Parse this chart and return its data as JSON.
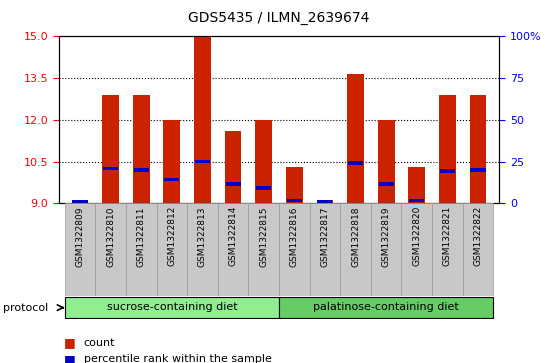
{
  "title": "GDS5435 / ILMN_2639674",
  "samples": [
    "GSM1322809",
    "GSM1322810",
    "GSM1322811",
    "GSM1322812",
    "GSM1322813",
    "GSM1322814",
    "GSM1322815",
    "GSM1322816",
    "GSM1322817",
    "GSM1322818",
    "GSM1322819",
    "GSM1322820",
    "GSM1322821",
    "GSM1322822"
  ],
  "count_values": [
    9.1,
    12.9,
    12.9,
    12.0,
    15.0,
    11.6,
    12.0,
    10.3,
    9.1,
    13.65,
    12.0,
    10.3,
    12.9,
    12.9
  ],
  "percentile_values": [
    9.05,
    10.25,
    10.2,
    9.85,
    10.5,
    9.7,
    9.55,
    9.1,
    9.05,
    10.45,
    9.7,
    9.1,
    10.15,
    10.2
  ],
  "ymin": 9.0,
  "ymax": 15.0,
  "yticks": [
    9,
    10.5,
    12,
    13.5,
    15
  ],
  "right_yticks": [
    0,
    25,
    50,
    75,
    100
  ],
  "right_ytick_positions": [
    9.0,
    10.5,
    12.0,
    13.5,
    15.0
  ],
  "groups": [
    {
      "label": "sucrose-containing diet",
      "start": 0,
      "end": 7
    },
    {
      "label": "palatinose-containing diet",
      "start": 7,
      "end": 14
    }
  ],
  "group_colors": [
    "#90EE90",
    "#66CC66"
  ],
  "bar_color": "#CC2200",
  "percentile_color": "#0000CC",
  "background_color": "#FFFFFF",
  "tick_area_color": "#C8C8C8",
  "bar_width": 0.55,
  "base_value": 9.0,
  "grid_yticks": [
    10.5,
    12.0,
    13.5
  ]
}
